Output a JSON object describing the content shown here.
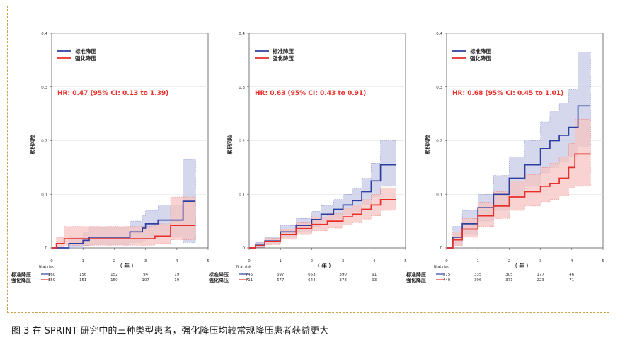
{
  "caption": "图 3 在 SPRINT 研究中的三种类型患者，强化降压均较常规降压患者获益更大",
  "colors": {
    "standard": "#2f3fa0",
    "intensive": "#e8302a",
    "standard_band": "#c7c9e6",
    "intensive_band": "#f6c4c2",
    "hr_text": "#e8302a",
    "frame": "#c8a14a"
  },
  "chart_data": [
    {
      "type": "line",
      "ylabel": "累积风险",
      "xlabel": "（ 年 ）",
      "xlim": [
        0,
        5
      ],
      "ylim": [
        0,
        0.4
      ],
      "x_ticks": [
        "0",
        "1",
        "2",
        "3",
        "4",
        "5"
      ],
      "y_ticks": [
        "0",
        "0.1",
        "0.2",
        "0.3",
        "0.4"
      ],
      "legend": [
        "标准降压",
        "强化降压"
      ],
      "annotation": "HR: 0.47 (95% CI: 0.13 to 1.39)",
      "risk_table_label": "N at risk",
      "risk_table": {
        "rows": [
          "标准降压",
          "强化降压"
        ],
        "values": [
          [
            "160",
            "156",
            "152",
            "94",
            "19"
          ],
          [
            "159",
            "151",
            "150",
            "107",
            "19"
          ]
        ]
      },
      "series": [
        {
          "name": "标准降压",
          "x": [
            0,
            0.45,
            0.55,
            0.8,
            1.0,
            1.2,
            2.4,
            2.5,
            2.6,
            2.9,
            3.0,
            3.4,
            3.8,
            4.2,
            4.6
          ],
          "y": [
            0,
            0,
            0.008,
            0.008,
            0.014,
            0.02,
            0.02,
            0.03,
            0.03,
            0.037,
            0.045,
            0.052,
            0.052,
            0.087,
            0.087
          ],
          "lower": [
            0,
            0,
            0,
            0,
            0.004,
            0.006,
            0.006,
            0.01,
            0.01,
            0.014,
            0.018,
            0.022,
            0.02,
            0.01,
            0.01
          ],
          "upper": [
            0,
            0,
            0.02,
            0.02,
            0.03,
            0.038,
            0.038,
            0.05,
            0.05,
            0.06,
            0.07,
            0.08,
            0.08,
            0.165,
            0.165
          ]
        },
        {
          "name": "强化降压",
          "x": [
            0,
            0.15,
            0.4,
            3.0,
            3.3,
            3.5,
            3.8,
            4.6
          ],
          "y": [
            0,
            0.008,
            0.017,
            0.017,
            0.022,
            0.022,
            0.042,
            0.042
          ],
          "lower": [
            0,
            0,
            0.005,
            0.005,
            0.008,
            0.008,
            0.015,
            0.015
          ],
          "upper": [
            0,
            0.02,
            0.04,
            0.04,
            0.045,
            0.045,
            0.095,
            0.095
          ]
        }
      ]
    },
    {
      "type": "line",
      "ylabel": "累积风险",
      "xlabel": "（ 年 ）",
      "xlim": [
        0,
        5
      ],
      "ylim": [
        0,
        0.4
      ],
      "x_ticks": [
        "0",
        "1",
        "2",
        "3",
        "4",
        "5"
      ],
      "y_ticks": [
        "0",
        "0.1",
        "0.2",
        "0.3",
        "0.4"
      ],
      "legend": [
        "标准降压",
        "强化降压"
      ],
      "annotation": "HR: 0.63 (95% CI: 0.43 to 0.91)",
      "risk_table_label": "N at risk",
      "risk_table": {
        "rows": [
          "标准降压",
          "强化降压"
        ],
        "values": [
          [
            "745",
            "697",
            "653",
            "390",
            "91"
          ],
          [
            "711",
            "677",
            "644",
            "378",
            "93"
          ]
        ]
      },
      "series": [
        {
          "name": "标准降压",
          "x": [
            0,
            0.2,
            0.5,
            1.0,
            1.5,
            2.0,
            2.3,
            2.7,
            3.0,
            3.3,
            3.6,
            3.9,
            4.2,
            4.7
          ],
          "y": [
            0,
            0.005,
            0.013,
            0.03,
            0.042,
            0.053,
            0.063,
            0.072,
            0.08,
            0.088,
            0.105,
            0.125,
            0.155,
            0.155
          ],
          "lower": [
            0,
            0.001,
            0.007,
            0.02,
            0.03,
            0.04,
            0.048,
            0.055,
            0.061,
            0.068,
            0.08,
            0.095,
            0.115,
            0.115
          ],
          "upper": [
            0,
            0.01,
            0.02,
            0.042,
            0.055,
            0.068,
            0.079,
            0.09,
            0.1,
            0.11,
            0.13,
            0.158,
            0.2,
            0.2
          ]
        },
        {
          "name": "强化降压",
          "x": [
            0,
            0.2,
            0.5,
            1.0,
            1.5,
            2.0,
            2.5,
            3.0,
            3.3,
            3.6,
            3.9,
            4.2,
            4.7
          ],
          "y": [
            0,
            0.004,
            0.012,
            0.025,
            0.036,
            0.044,
            0.05,
            0.058,
            0.063,
            0.072,
            0.08,
            0.09,
            0.09
          ],
          "lower": [
            0,
            0.001,
            0.006,
            0.016,
            0.025,
            0.032,
            0.037,
            0.043,
            0.047,
            0.054,
            0.06,
            0.07,
            0.07
          ],
          "upper": [
            0,
            0.008,
            0.018,
            0.035,
            0.047,
            0.057,
            0.064,
            0.074,
            0.08,
            0.09,
            0.1,
            0.112,
            0.112
          ]
        }
      ]
    },
    {
      "type": "line",
      "ylabel": "累积风险",
      "xlabel": "（ 年 ）",
      "xlim": [
        0,
        5
      ],
      "ylim": [
        0,
        0.4
      ],
      "x_ticks": [
        "0",
        "1",
        "2",
        "3",
        "4",
        "5"
      ],
      "y_ticks": [
        "0",
        "0.1",
        "0.2",
        "0.3",
        "0.4"
      ],
      "legend": [
        "标准降压",
        "强化降压"
      ],
      "annotation": "HR: 0.68 (95% CI: 0.45 to 1.01)",
      "risk_table_label": "N at risk",
      "risk_table": {
        "rows": [
          "标准降压",
          "强化降压"
        ],
        "values": [
          [
            "375",
            "335",
            "305",
            "177",
            "46"
          ],
          [
            "440",
            "396",
            "371",
            "223",
            "71"
          ]
        ]
      },
      "series": [
        {
          "name": "标准降压",
          "x": [
            0,
            0.2,
            0.5,
            1.0,
            1.5,
            2.0,
            2.5,
            3.0,
            3.3,
            3.6,
            3.9,
            4.2,
            4.6
          ],
          "y": [
            0,
            0.02,
            0.045,
            0.075,
            0.1,
            0.13,
            0.155,
            0.185,
            0.2,
            0.21,
            0.225,
            0.265,
            0.265
          ],
          "lower": [
            0,
            0.005,
            0.025,
            0.05,
            0.07,
            0.095,
            0.115,
            0.14,
            0.15,
            0.16,
            0.17,
            0.19,
            0.19
          ],
          "upper": [
            0,
            0.04,
            0.07,
            0.1,
            0.135,
            0.17,
            0.2,
            0.235,
            0.255,
            0.27,
            0.295,
            0.365,
            0.365
          ]
        },
        {
          "name": "强化降压",
          "x": [
            0,
            0.2,
            0.5,
            1.0,
            1.5,
            2.0,
            2.5,
            3.0,
            3.3,
            3.6,
            3.9,
            4.1,
            4.6
          ],
          "y": [
            0,
            0.015,
            0.035,
            0.06,
            0.078,
            0.095,
            0.105,
            0.115,
            0.12,
            0.13,
            0.15,
            0.175,
            0.175
          ],
          "lower": [
            0,
            0.003,
            0.02,
            0.04,
            0.055,
            0.07,
            0.078,
            0.086,
            0.09,
            0.097,
            0.113,
            0.115,
            0.115
          ],
          "upper": [
            0,
            0.03,
            0.055,
            0.085,
            0.105,
            0.125,
            0.137,
            0.15,
            0.158,
            0.17,
            0.195,
            0.24,
            0.24
          ]
        }
      ]
    }
  ]
}
